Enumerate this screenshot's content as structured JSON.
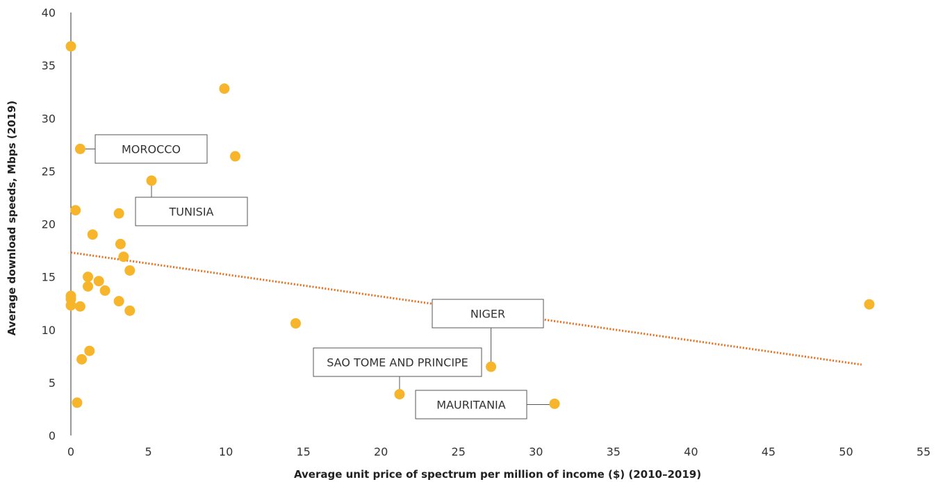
{
  "chart_data": {
    "type": "scatter",
    "title": "",
    "xlabel": "Average unit price of spectrum per million of income ($) (2010–2019)",
    "ylabel": "Average download speeds, Mbps (2019)",
    "xlim": [
      0,
      55
    ],
    "ylim": [
      0,
      40
    ],
    "xticks": [
      "0",
      "5",
      "10",
      "15",
      "20",
      "25",
      "30",
      "35",
      "40",
      "45",
      "50",
      "55"
    ],
    "yticks": [
      "0",
      "5",
      "10",
      "15",
      "20",
      "25",
      "30",
      "35",
      "40"
    ],
    "grid": false,
    "legend": "none",
    "point_color": "#F7B52C",
    "trend_color": "#E86E1C",
    "points": [
      {
        "x": 0.0,
        "y": 36.8
      },
      {
        "x": 9.9,
        "y": 32.8
      },
      {
        "x": 0.6,
        "y": 27.1
      },
      {
        "x": 10.6,
        "y": 26.4
      },
      {
        "x": 5.2,
        "y": 24.1
      },
      {
        "x": 0.3,
        "y": 21.3
      },
      {
        "x": 3.1,
        "y": 21.0
      },
      {
        "x": 1.4,
        "y": 19.0
      },
      {
        "x": 3.2,
        "y": 18.1
      },
      {
        "x": 3.4,
        "y": 16.9
      },
      {
        "x": 3.8,
        "y": 15.6
      },
      {
        "x": 1.1,
        "y": 15.0
      },
      {
        "x": 1.8,
        "y": 14.6
      },
      {
        "x": 1.1,
        "y": 14.1
      },
      {
        "x": 2.2,
        "y": 13.7
      },
      {
        "x": 0.0,
        "y": 13.2
      },
      {
        "x": 0.0,
        "y": 12.9
      },
      {
        "x": 3.1,
        "y": 12.7
      },
      {
        "x": 0.0,
        "y": 12.3
      },
      {
        "x": 0.6,
        "y": 12.2
      },
      {
        "x": 3.8,
        "y": 11.8
      },
      {
        "x": 14.5,
        "y": 10.6
      },
      {
        "x": 1.2,
        "y": 8.0
      },
      {
        "x": 0.7,
        "y": 7.2
      },
      {
        "x": 27.1,
        "y": 6.5
      },
      {
        "x": 21.2,
        "y": 3.9
      },
      {
        "x": 0.4,
        "y": 3.1
      },
      {
        "x": 31.2,
        "y": 3.0
      },
      {
        "x": 51.5,
        "y": 12.4
      }
    ],
    "trendline": {
      "x": [
        0,
        51.0
      ],
      "y": [
        17.3,
        6.7
      ]
    },
    "annotations": [
      {
        "label": "MOROCCO",
        "x": 0.6,
        "y": 27.1
      },
      {
        "label": "TUNISIA",
        "x": 5.2,
        "y": 24.1
      },
      {
        "label": "NIGER",
        "x": 27.1,
        "y": 6.5
      },
      {
        "label": "SAO TOME AND PRINCIPE",
        "x": 21.2,
        "y": 3.9
      },
      {
        "label": "MAURITANIA",
        "x": 31.2,
        "y": 3.0
      }
    ]
  }
}
